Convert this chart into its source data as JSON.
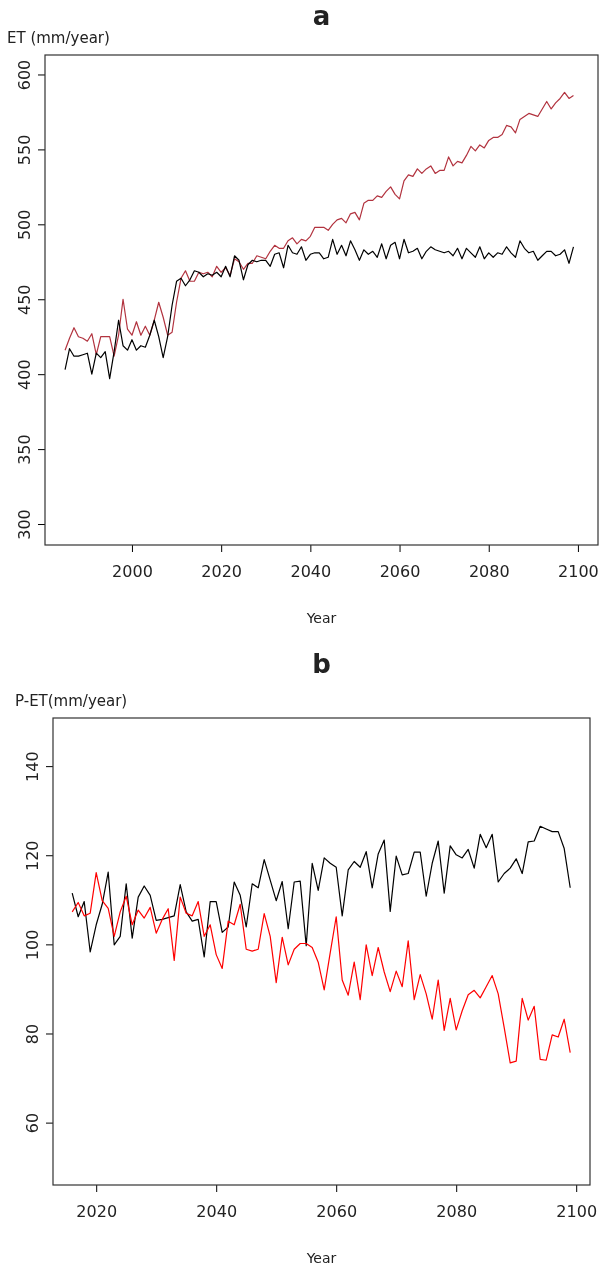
{
  "chart_data": [
    {
      "type": "line",
      "title": "a",
      "ylabel": "ET (mm/year)",
      "xlabel": "Year",
      "xlim": [
        1980.5,
        2104.5
      ],
      "ylim": [
        286,
        613
      ],
      "xticks": [
        2000,
        2020,
        2040,
        2060,
        2080,
        2100
      ],
      "yticks": [
        300,
        350,
        400,
        450,
        500,
        550,
        600
      ],
      "marker": "none",
      "line_style": "solid",
      "x": [
        1985,
        1986,
        1987,
        1988,
        1989,
        1990,
        1991,
        1992,
        1993,
        1994,
        1995,
        1996,
        1997,
        1998,
        1999,
        2000,
        2001,
        2002,
        2003,
        2004,
        2005,
        2006,
        2007,
        2008,
        2009,
        2010,
        2011,
        2012,
        2013,
        2014,
        2015,
        2016,
        2017,
        2018,
        2019,
        2020,
        2021,
        2022,
        2023,
        2024,
        2025,
        2026,
        2027,
        2028,
        2029,
        2030,
        2031,
        2032,
        2033,
        2034,
        2035,
        2036,
        2037,
        2038,
        2039,
        2040,
        2041,
        2042,
        2043,
        2044,
        2045,
        2046,
        2047,
        2048,
        2049,
        2050,
        2051,
        2052,
        2053,
        2054,
        2055,
        2056,
        2057,
        2058,
        2059,
        2060,
        2061,
        2062,
        2063,
        2064,
        2065,
        2066,
        2067,
        2068,
        2069,
        2070,
        2071,
        2072,
        2073,
        2074,
        2075,
        2076,
        2077,
        2078,
        2079,
        2080,
        2081,
        2082,
        2083,
        2084,
        2085,
        2086,
        2087,
        2088,
        2089,
        2090,
        2091,
        2092,
        2093,
        2094,
        2095,
        2096,
        2097,
        2098,
        2099
      ],
      "series": [
        {
          "color": "#b2333f",
          "values": [
            416,
            424,
            431,
            425,
            424,
            422,
            427,
            413,
            425,
            425,
            425,
            412,
            426,
            450,
            430,
            426,
            435,
            426,
            432,
            426,
            436,
            448,
            438,
            426,
            428,
            448,
            464,
            469,
            462,
            462,
            468,
            467,
            468,
            465,
            472,
            468,
            471,
            466,
            477,
            475,
            470,
            474,
            474,
            479,
            478,
            477,
            482,
            486,
            484,
            484,
            489,
            491,
            487,
            490,
            489,
            492,
            498,
            498,
            498,
            496,
            500,
            503,
            504,
            501,
            507,
            508,
            503,
            514,
            516,
            516,
            519,
            518,
            522,
            525,
            520,
            517,
            529,
            533,
            532,
            537,
            534,
            537,
            539,
            534,
            536,
            536,
            545,
            539,
            542,
            541,
            546,
            552,
            549,
            553,
            551,
            556,
            558,
            558,
            560,
            566,
            565,
            561,
            570,
            572,
            574,
            573,
            572,
            577,
            582,
            577,
            581,
            584,
            588,
            584,
            586
          ]
        },
        {
          "color": "#000000",
          "values": [
            403,
            417,
            412,
            412,
            413,
            414,
            400,
            414,
            411,
            415,
            397,
            415,
            436,
            419,
            416,
            423,
            416,
            419,
            418,
            426,
            436,
            425,
            411,
            425,
            446,
            462,
            464,
            459,
            463,
            469,
            468,
            465,
            467,
            466,
            468,
            465,
            472,
            465,
            479,
            476,
            463,
            473,
            476,
            475,
            476,
            476,
            472,
            480,
            481,
            471,
            486,
            481,
            480,
            485,
            476,
            480,
            481,
            481,
            477,
            478,
            490,
            480,
            486,
            479,
            489,
            483,
            476,
            483,
            480,
            482,
            478,
            487,
            477,
            486,
            488,
            477,
            490,
            481,
            482,
            484,
            477,
            482,
            485,
            483,
            482,
            481,
            482,
            479,
            484,
            477,
            484,
            481,
            478,
            485,
            477,
            481,
            478,
            481,
            480,
            485,
            481,
            478,
            489,
            484,
            481,
            482,
            476,
            479,
            482,
            482,
            479,
            480,
            483,
            474,
            485
          ]
        }
      ]
    },
    {
      "type": "line",
      "title": "b",
      "ylabel": "P-ET(mm/year)",
      "xlabel": "Year",
      "xlim": [
        2012.8,
        2102.3
      ],
      "ylim": [
        46,
        150.8
      ],
      "xticks": [
        2020,
        2040,
        2060,
        2080,
        2100
      ],
      "yticks": [
        60,
        80,
        100,
        120,
        140
      ],
      "marker": "none",
      "line_style": "solid",
      "x": [
        2016,
        2017,
        2018,
        2019,
        2020,
        2021,
        2022,
        2023,
        2024,
        2025,
        2026,
        2027,
        2028,
        2029,
        2030,
        2031,
        2032,
        2033,
        2034,
        2035,
        2036,
        2037,
        2038,
        2039,
        2040,
        2041,
        2042,
        2043,
        2044,
        2045,
        2046,
        2047,
        2048,
        2049,
        2050,
        2051,
        2052,
        2053,
        2054,
        2055,
        2056,
        2057,
        2058,
        2059,
        2060,
        2061,
        2062,
        2063,
        2064,
        2065,
        2066,
        2067,
        2068,
        2069,
        2070,
        2071,
        2072,
        2073,
        2074,
        2075,
        2076,
        2077,
        2078,
        2079,
        2080,
        2081,
        2082,
        2083,
        2084,
        2085,
        2086,
        2087,
        2088,
        2089,
        2090,
        2091,
        2092,
        2093,
        2094,
        2095,
        2096,
        2097,
        2098,
        2099
      ],
      "series": [
        {
          "color": "#000000",
          "values": [
            111.5,
            106.2,
            109.6,
            98.3,
            104.4,
            109,
            116.2,
            99.9,
            101.8,
            113.6,
            101.4,
            110.6,
            113.1,
            111,
            105.4,
            105.6,
            106,
            106.4,
            113.4,
            107.3,
            105.2,
            105.6,
            97.2,
            109.6,
            109.6,
            102.7,
            103.9,
            114,
            111,
            103.9,
            113.6,
            112.7,
            119,
            114.4,
            109.8,
            114.1,
            103.5,
            114,
            114.2,
            99.7,
            118.2,
            112.1,
            119.4,
            118.2,
            117.3,
            106.4,
            116.7,
            118.6,
            117.3,
            120.8,
            112.7,
            120.3,
            123.4,
            107.4,
            119.8,
            115.6,
            115.9,
            120.7,
            120.7,
            110.8,
            118.2,
            123.2,
            111.5,
            122.1,
            120.1,
            119.4,
            121.3,
            117.1,
            124.7,
            121.7,
            124.7,
            114,
            115.9,
            117.1,
            119.2,
            115.9,
            123,
            123.2,
            126.5,
            125.9,
            125.3,
            125.3,
            121.5,
            112.7
          ]
        },
        {
          "color": "#ff0000",
          "values": [
            107.3,
            109.4,
            106.4,
            107,
            116.1,
            109.8,
            108.1,
            101.8,
            107.3,
            110.8,
            104.4,
            107.7,
            105.9,
            108.3,
            102.5,
            105.6,
            108,
            96.4,
            110.6,
            107,
            106.4,
            109.6,
            101.8,
            104.4,
            97.7,
            94.6,
            105.2,
            104.4,
            109,
            98.9,
            98.5,
            98.9,
            106.9,
            101.8,
            91.4,
            101.6,
            95.4,
            98.9,
            100.2,
            100.2,
            99.3,
            96,
            89.8,
            98.1,
            106.2,
            92,
            88.6,
            96,
            87.6,
            99.9,
            93,
            99.3,
            93.8,
            89.4,
            94,
            90.5,
            100.8,
            87.6,
            93.2,
            88.9,
            83.2,
            92,
            80.7,
            87.9,
            80.8,
            85.1,
            88.7,
            89.7,
            88,
            90.5,
            93,
            88.9,
            81.3,
            73.4,
            73.8,
            87.9,
            83,
            86.1,
            74.2,
            74,
            79.7,
            79.2,
            83.2,
            75.7
          ]
        }
      ]
    }
  ]
}
